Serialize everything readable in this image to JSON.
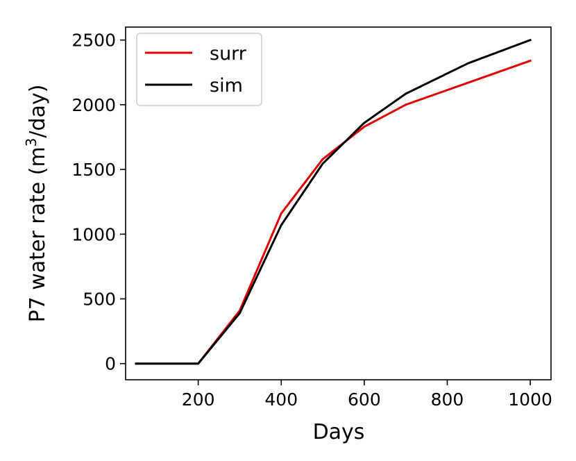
{
  "chart_data": {
    "type": "line",
    "xlabel": "Days",
    "ylabel": {
      "prefix": "P7 water rate (m",
      "superscript": "3",
      "suffix": "/day)"
    },
    "xlim": [
      25,
      1050
    ],
    "ylim": [
      -125,
      2600
    ],
    "xticks": [
      200,
      400,
      600,
      800,
      1000
    ],
    "yticks": [
      0,
      500,
      1000,
      1500,
      2000,
      2500
    ],
    "grid": false,
    "legend_position": "upper-left",
    "series": [
      {
        "name": "surr",
        "color": "#e00000",
        "x": [
          50,
          100,
          150,
          200,
          300,
          400,
          500,
          600,
          700,
          850,
          1000
        ],
        "y": [
          0,
          0,
          0,
          0,
          410,
          1160,
          1580,
          1830,
          2000,
          2170,
          2340
        ]
      },
      {
        "name": "sim",
        "color": "#000000",
        "x": [
          50,
          100,
          150,
          200,
          300,
          400,
          500,
          600,
          700,
          850,
          1000
        ],
        "y": [
          0,
          0,
          0,
          0,
          390,
          1070,
          1545,
          1860,
          2085,
          2320,
          2500
        ]
      }
    ]
  }
}
